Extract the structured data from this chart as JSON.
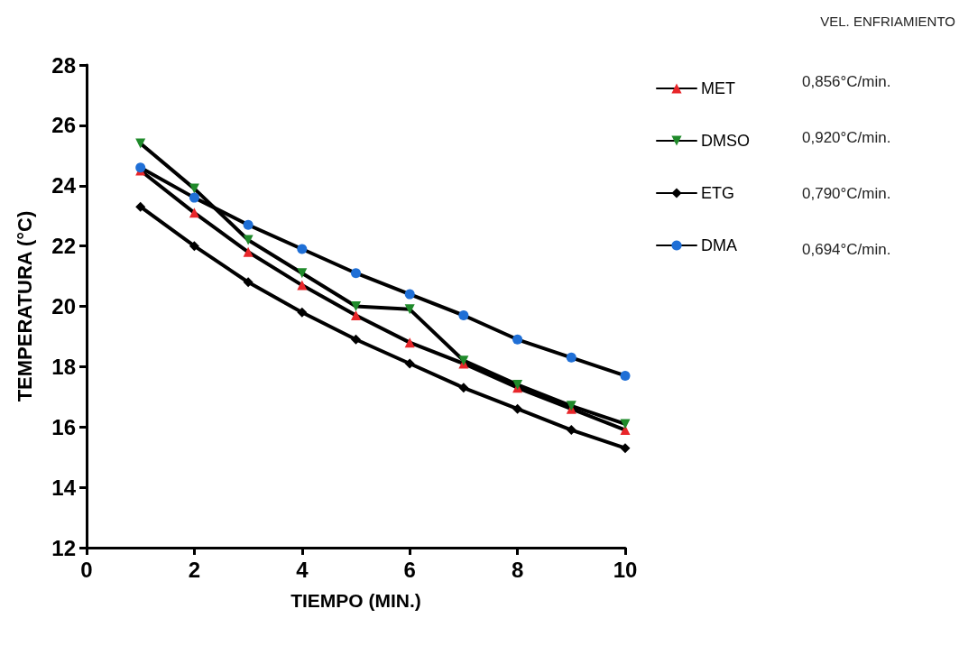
{
  "chart_data": {
    "type": "line",
    "xlabel": "TIEMPO (MIN.)",
    "ylabel": "TEMPERATURA (°C)",
    "x": [
      1,
      2,
      3,
      4,
      5,
      6,
      7,
      8,
      9,
      10
    ],
    "series": [
      {
        "name": "MET",
        "color": "#e8262a",
        "marker": "triangle",
        "values": [
          24.5,
          23.1,
          21.8,
          20.7,
          19.7,
          18.8,
          18.1,
          17.3,
          16.6,
          15.9
        ]
      },
      {
        "name": "DMSO",
        "color": "#1f8a2a",
        "marker": "triangle-down",
        "values": [
          25.4,
          23.9,
          22.2,
          21.1,
          20.0,
          19.9,
          18.2,
          17.4,
          16.7,
          16.1
        ]
      },
      {
        "name": "ETG",
        "color": "#000000",
        "marker": "diamond",
        "values": [
          23.3,
          22.0,
          20.8,
          19.8,
          18.9,
          18.1,
          17.3,
          16.6,
          15.9,
          15.3
        ]
      },
      {
        "name": "DMA",
        "color": "#1f6fd6",
        "marker": "circle",
        "values": [
          24.6,
          23.6,
          22.7,
          21.9,
          21.1,
          20.4,
          19.7,
          18.9,
          18.3,
          17.7
        ]
      }
    ],
    "xlim": [
      0,
      10
    ],
    "xticks": [
      0,
      2,
      4,
      6,
      8,
      10
    ],
    "ylim": [
      12,
      28
    ],
    "yticks": [
      12,
      14,
      16,
      18,
      20,
      22,
      24,
      26,
      28
    ],
    "grid": false,
    "legend": "right",
    "line_style": "solid",
    "annotations": [
      "VEL. ENFRIAMIENTO",
      "0,856°C/min.",
      "0,920°C/min.",
      "0,790°C/min.",
      "0,694°C/min."
    ]
  }
}
